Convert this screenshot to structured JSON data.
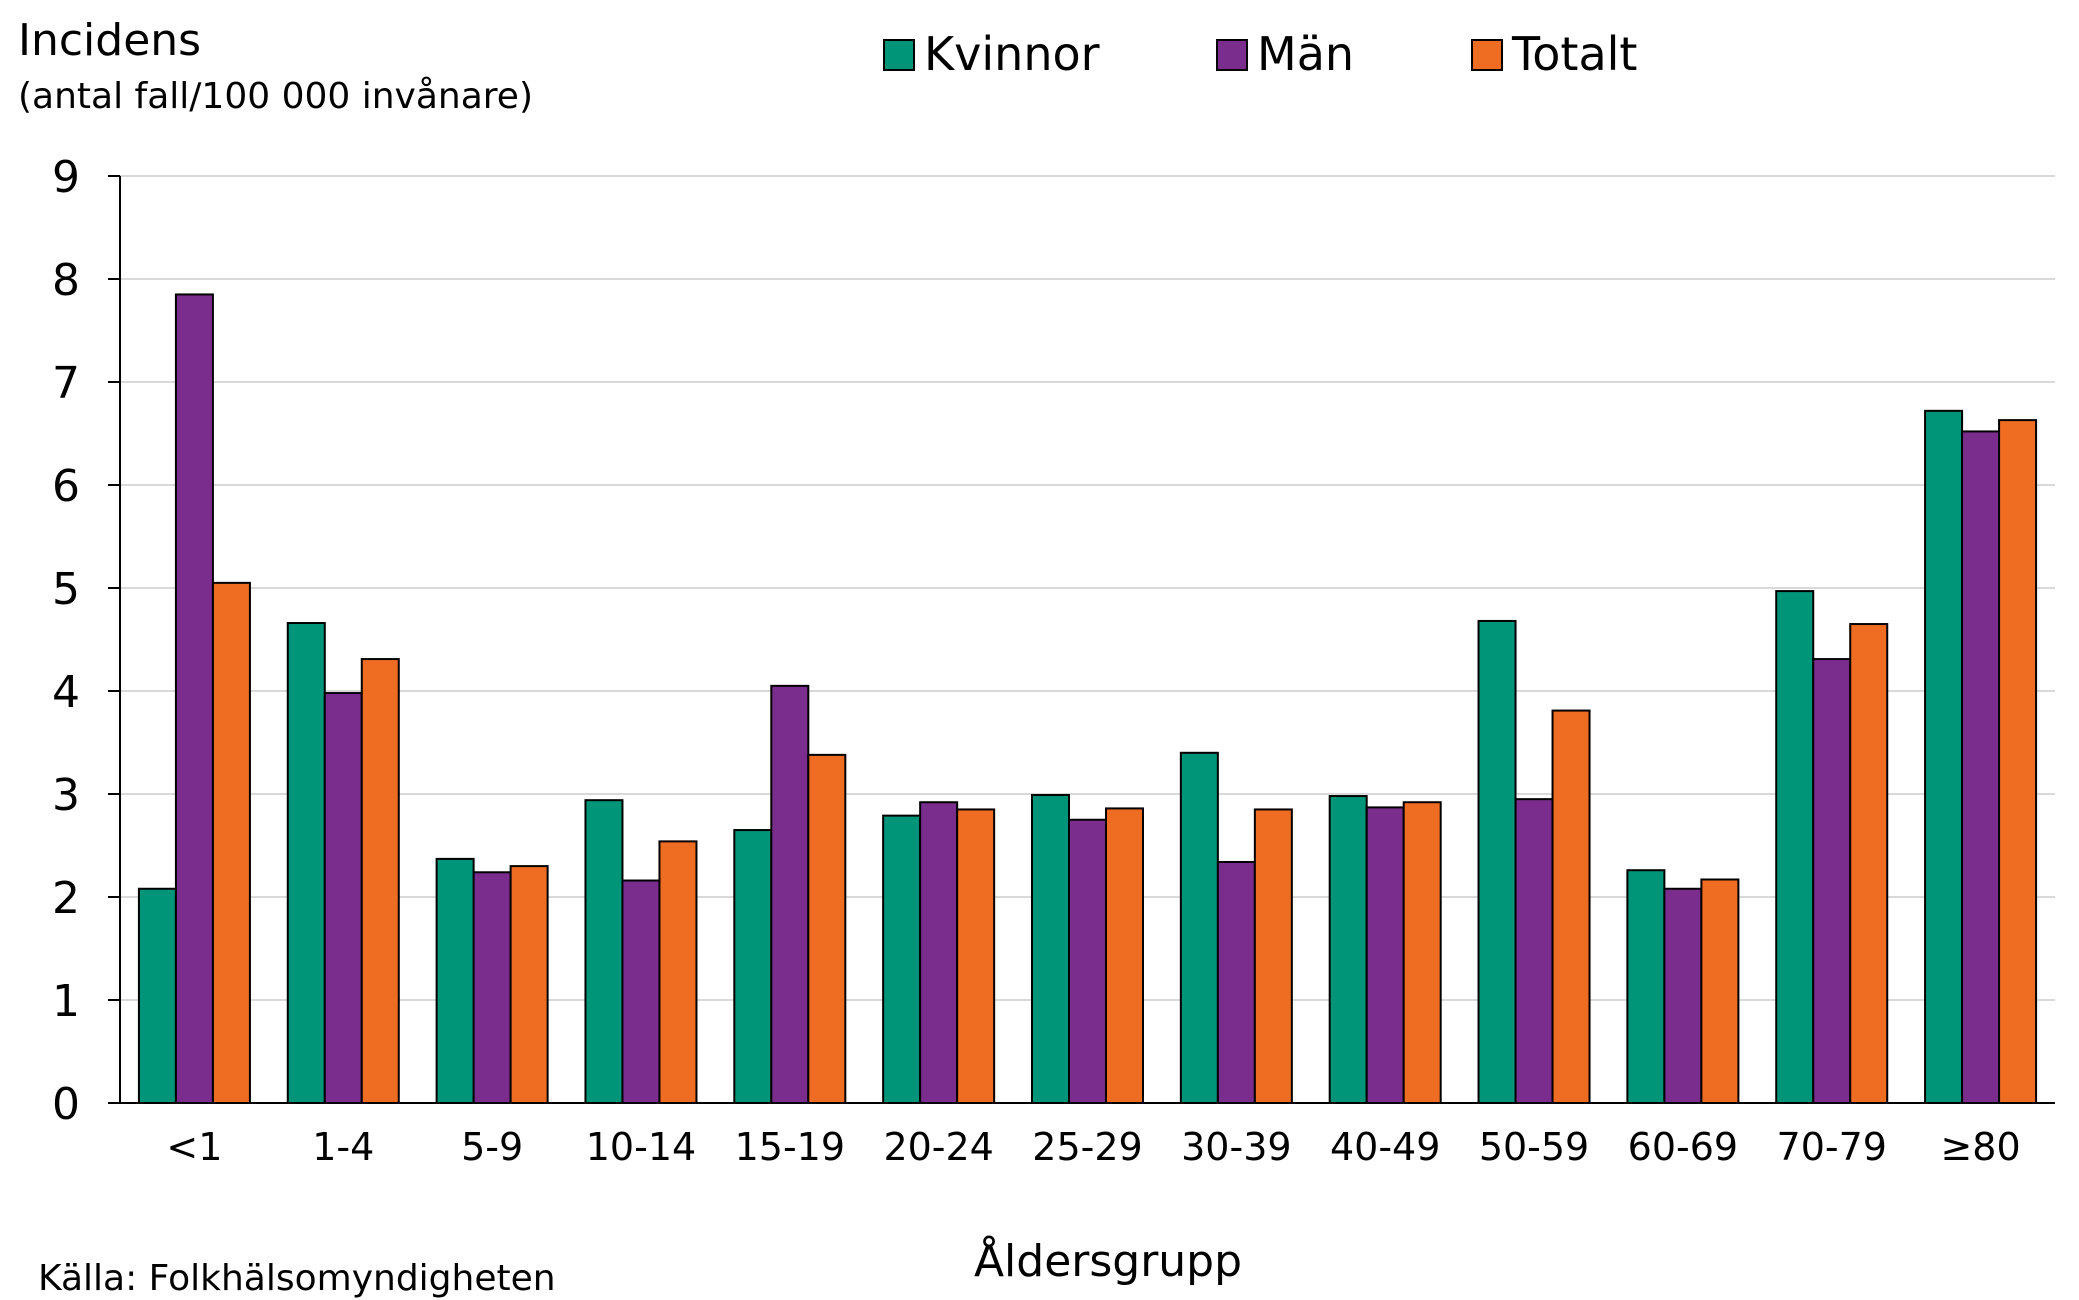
{
  "chart_data": {
    "type": "bar",
    "ylabel": "Incidens",
    "ylabel_sub": "(antal fall/100 000 invånare)",
    "xlabel": "Åldersgrupp",
    "source": "Källa: Folkhälsomyndigheten",
    "ylim": [
      0,
      9
    ],
    "yticks": [
      0,
      1,
      2,
      3,
      4,
      5,
      6,
      7,
      8,
      9
    ],
    "grid": true,
    "legend_position": "top",
    "categories": [
      "<1",
      "1-4",
      "5-9",
      "10-14",
      "15-19",
      "20-24",
      "25-29",
      "30-39",
      "40-49",
      "50-59",
      "60-69",
      "70-79",
      "≥80"
    ],
    "series": [
      {
        "name": "Kvinnor",
        "color": "#009479",
        "values": [
          2.08,
          4.66,
          2.37,
          2.94,
          2.65,
          2.79,
          2.99,
          3.4,
          2.98,
          4.68,
          2.26,
          4.97,
          6.72
        ]
      },
      {
        "name": "Män",
        "color": "#7b2d8e",
        "values": [
          7.85,
          3.98,
          2.24,
          2.16,
          4.05,
          2.92,
          2.75,
          2.34,
          2.87,
          2.95,
          2.08,
          4.31,
          6.52
        ]
      },
      {
        "name": "Totalt",
        "color": "#ef6d22",
        "values": [
          5.05,
          4.31,
          2.3,
          2.54,
          3.38,
          2.85,
          2.86,
          2.85,
          2.92,
          3.81,
          2.17,
          4.65,
          6.63
        ]
      }
    ]
  }
}
